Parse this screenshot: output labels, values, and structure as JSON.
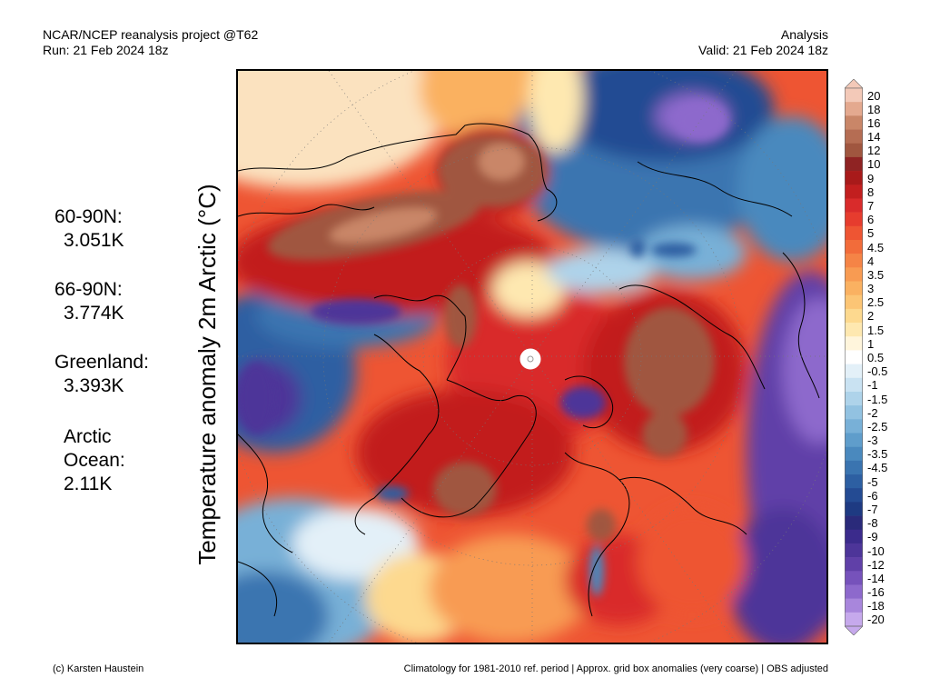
{
  "header": {
    "left_line1": "NCAR/NCEP reanalysis project @T62",
    "left_line2": "Run: 21 Feb 2024 18z",
    "right_line1": "Analysis",
    "right_line2": "Valid: 21 Feb 2024 18z"
  },
  "axis_label": "Temperature anomaly 2m Arctic (°C)",
  "stats": [
    {
      "label": "60-90N:",
      "value": "3.051K"
    },
    {
      "label": "66-90N:",
      "value": "3.774K"
    },
    {
      "label": "Greenland:",
      "value": "3.393K"
    },
    {
      "label": "Arctic",
      "label2": "Ocean:",
      "value": "2.11K"
    }
  ],
  "colorbar": {
    "labels": [
      "20",
      "18",
      "16",
      "14",
      "12",
      "10",
      "9",
      "8",
      "7",
      "6",
      "5",
      "4.5",
      "4",
      "3.5",
      "3",
      "2.5",
      "2",
      "1.5",
      "1",
      "0.5",
      "-0.5",
      "-1",
      "-1.5",
      "-2",
      "-2.5",
      "-3",
      "-3.5",
      "-4.5",
      "-5",
      "-6",
      "-7",
      "-8",
      "-9",
      "-10",
      "-12",
      "-14",
      "-16",
      "-18",
      "-20"
    ],
    "colors": [
      "#f3c9b8",
      "#e4a98f",
      "#c98668",
      "#b56d53",
      "#a0563f",
      "#8f2323",
      "#a81a1a",
      "#c21f1f",
      "#d92b2b",
      "#e63c2e",
      "#ee5533",
      "#f26c3a",
      "#f58446",
      "#f89b52",
      "#fab161",
      "#fcc575",
      "#fdd98f",
      "#fee8b0",
      "#fff5dc",
      "#ffffff",
      "#e3f0f8",
      "#c9e2f2",
      "#aed3ea",
      "#92c2e1",
      "#78b0d7",
      "#5f9dcb",
      "#4a89be",
      "#3a74b0",
      "#2d5fa2",
      "#244b93",
      "#1e3a82",
      "#2a2a7a",
      "#3b2b8c",
      "#4d3599",
      "#6040a8",
      "#7652bb",
      "#8d69cc",
      "#a886dc",
      "#c6a9ec"
    ]
  },
  "footer": {
    "left": "(c) Karsten Haustein",
    "right": "Climatology for 1981-2010 ref. period | Approx. grid box anomalies (very coarse) | OBS adjusted"
  }
}
